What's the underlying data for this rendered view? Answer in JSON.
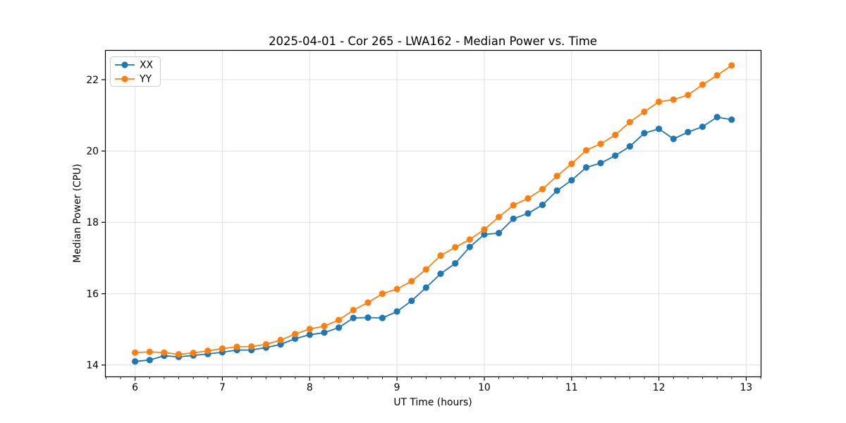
{
  "title": "2025-04-01 - Cor 265 - LWA162 - Median Power vs. Time",
  "colors": {
    "series_xx": "#1f77b4",
    "series_yy": "#ff7f0e",
    "grid": "#e0e0e0",
    "spine": "#000000",
    "legend_border": "#cccccc",
    "background": "#ffffff"
  },
  "legend": {
    "position": "upper-left",
    "items": [
      {
        "label": "XX",
        "color": "#1f77b4"
      },
      {
        "label": "YY",
        "color": "#ff7f0e"
      }
    ]
  },
  "chart_data": {
    "type": "line",
    "title": "2025-04-01 - Cor 265 - LWA162 - Median Power vs. Time",
    "xlabel": "UT Time (hours)",
    "ylabel": "Median Power (CPU)",
    "xlim": [
      5.66,
      13.17
    ],
    "ylim": [
      13.67,
      22.82
    ],
    "xticks": [
      6,
      7,
      8,
      9,
      10,
      11,
      12,
      13
    ],
    "yticks": [
      14,
      16,
      18,
      20,
      22
    ],
    "minor_xtick_step": 0.16667,
    "grid": true,
    "legend_position": "upper left",
    "marker": "circle",
    "x": [
      6.0,
      6.167,
      6.333,
      6.5,
      6.667,
      6.833,
      7.0,
      7.167,
      7.333,
      7.5,
      7.667,
      7.833,
      8.0,
      8.167,
      8.333,
      8.5,
      8.667,
      8.833,
      9.0,
      9.167,
      9.333,
      9.5,
      9.667,
      9.833,
      10.0,
      10.167,
      10.333,
      10.5,
      10.667,
      10.833,
      11.0,
      11.167,
      11.333,
      11.5,
      11.667,
      11.833,
      12.0,
      12.167,
      12.333,
      12.5,
      12.667,
      12.833
    ],
    "series": [
      {
        "name": "XX",
        "color": "#1f77b4",
        "values": [
          14.1,
          14.14,
          14.26,
          14.23,
          14.27,
          14.31,
          14.36,
          14.42,
          14.42,
          14.49,
          14.58,
          14.74,
          14.85,
          14.91,
          15.05,
          15.32,
          15.33,
          15.32,
          15.5,
          15.8,
          16.17,
          16.56,
          16.85,
          17.31,
          17.66,
          17.7,
          18.1,
          18.25,
          18.49,
          18.89,
          19.18,
          19.54,
          19.66,
          19.87,
          20.13,
          20.5,
          20.62,
          20.34,
          20.53,
          20.68,
          20.95,
          20.88
        ]
      },
      {
        "name": "YY",
        "color": "#ff7f0e",
        "values": [
          14.35,
          14.37,
          14.35,
          14.3,
          14.34,
          14.4,
          14.46,
          14.51,
          14.52,
          14.58,
          14.7,
          14.87,
          15.01,
          15.09,
          15.26,
          15.54,
          15.75,
          16.0,
          16.13,
          16.35,
          16.68,
          17.07,
          17.3,
          17.52,
          17.8,
          18.15,
          18.48,
          18.67,
          18.93,
          19.3,
          19.64,
          20.02,
          20.2,
          20.45,
          20.81,
          21.1,
          21.38,
          21.44,
          21.57,
          21.86,
          22.12,
          22.4
        ]
      }
    ]
  }
}
